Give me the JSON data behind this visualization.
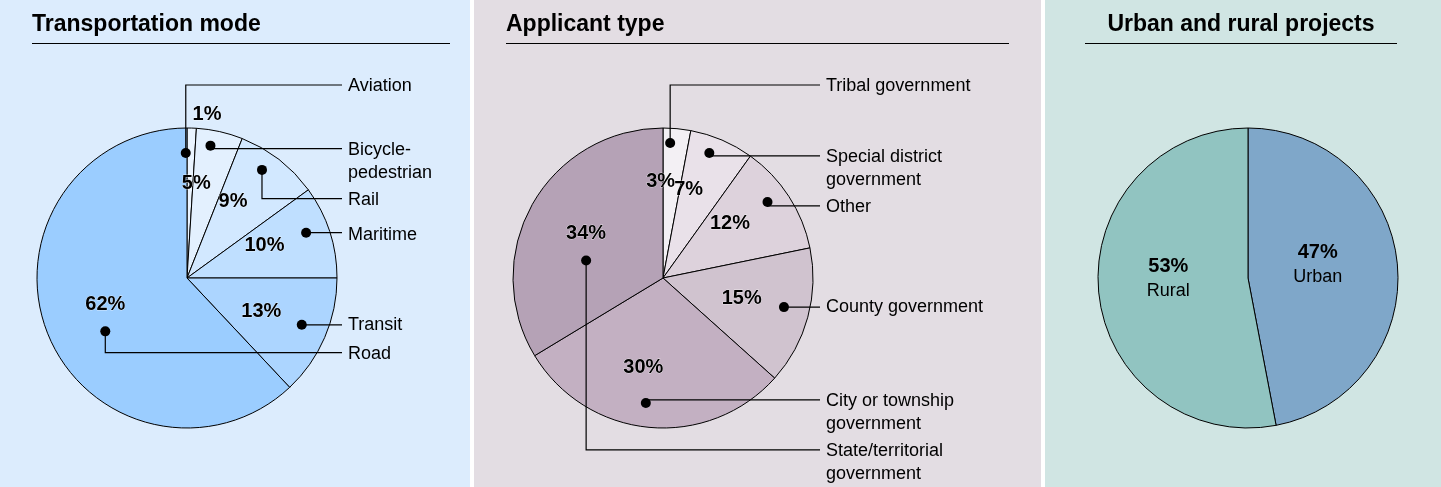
{
  "chart_data": [
    {
      "type": "pie",
      "title": "Transportation mode",
      "categories": [
        "Aviation",
        "Bicycle-pedestrian",
        "Rail",
        "Maritime",
        "Transit",
        "Road"
      ],
      "values": [
        1,
        5,
        9,
        10,
        13,
        62
      ],
      "colors": [
        "#eaf4ff",
        "#e3f0fe",
        "#d2e8ff",
        "#bfdfff",
        "#acd5ff",
        "#9bcdff"
      ],
      "value_labels": [
        "1%",
        "5%",
        "9%",
        "10%",
        "13%",
        "62%"
      ]
    },
    {
      "type": "pie",
      "title": "Applicant type",
      "categories": [
        "Tribal government",
        "Special district government",
        "Other",
        "County government",
        "City or township government",
        "State/territorial government"
      ],
      "values": [
        3,
        7,
        12,
        15,
        30,
        34
      ],
      "colors": [
        "#f3f0f4",
        "#e9e1e9",
        "#ddd2dc",
        "#d0c3cf",
        "#c3b0c2",
        "#b5a2b6"
      ],
      "value_labels": [
        "3%",
        "7%",
        "12%",
        "15%",
        "30%",
        "34%"
      ]
    },
    {
      "type": "pie",
      "title": "Urban and rural projects",
      "categories": [
        "Urban",
        "Rural"
      ],
      "values": [
        47,
        53
      ],
      "colors": [
        "#7fa7c9",
        "#91c4c1"
      ],
      "value_labels": [
        "47%",
        "53%"
      ]
    }
  ]
}
